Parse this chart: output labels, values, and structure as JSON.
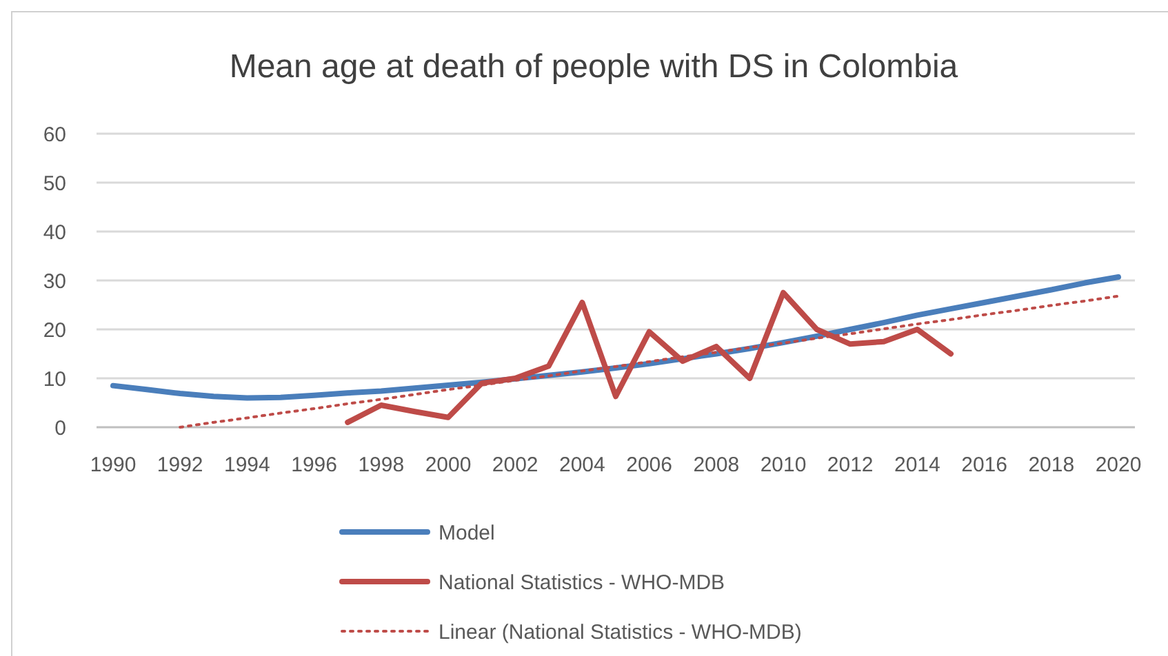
{
  "chart_data": {
    "type": "line",
    "title": "Mean age at death of people with DS in Colombia",
    "categories": [
      "1990",
      null,
      "1992",
      null,
      "1994",
      null,
      "1996",
      null,
      "1998",
      null,
      "2000",
      null,
      "2002",
      null,
      "2004",
      null,
      "2006",
      null,
      "2008",
      null,
      "2010",
      null,
      "2012",
      null,
      "2014",
      null,
      "2016",
      null,
      "2018",
      null,
      "2020"
    ],
    "series": [
      {
        "name": "Model",
        "color": "#4a7ebb",
        "values": [
          8.5,
          7.7,
          6.9,
          6.3,
          6.0,
          6.1,
          6.5,
          7.0,
          7.4,
          8.0,
          8.6,
          9.2,
          9.9,
          10.6,
          11.3,
          12.1,
          13.0,
          14.0,
          15.0,
          16.1,
          17.3,
          18.6,
          20.0,
          21.4,
          22.9,
          24.2,
          25.5,
          26.8,
          28.1,
          29.5,
          30.7
        ]
      },
      {
        "name": "National Statistics - WHO-MDB",
        "color": "#be4b48",
        "values": [
          null,
          null,
          null,
          null,
          null,
          null,
          null,
          1,
          4.5,
          3.2,
          2,
          9,
          10,
          12.5,
          25.5,
          6.3,
          19.5,
          13.5,
          16.5,
          10,
          27.5,
          20,
          17,
          17.5,
          20,
          15,
          null,
          null,
          null,
          null,
          null
        ]
      },
      {
        "name": "Linear (National Statistics - WHO-MDB)",
        "color": "#be4b48",
        "line_style": "dotted",
        "values": [
          null,
          null,
          0,
          1.0,
          1.9,
          2.9,
          3.8,
          4.8,
          5.7,
          6.7,
          7.7,
          8.6,
          9.6,
          10.5,
          11.5,
          12.4,
          13.4,
          14.4,
          15.3,
          16.3,
          17.2,
          18.2,
          19.1,
          20.1,
          21.1,
          22.0,
          23.0,
          23.9,
          24.9,
          25.8,
          26.8
        ]
      }
    ],
    "ylim": [
      0,
      60
    ],
    "yticks": [
      0,
      10,
      20,
      30,
      40,
      50,
      60
    ],
    "grid": "y",
    "legend": "bottom",
    "line_style": "solid",
    "marker": "none"
  }
}
